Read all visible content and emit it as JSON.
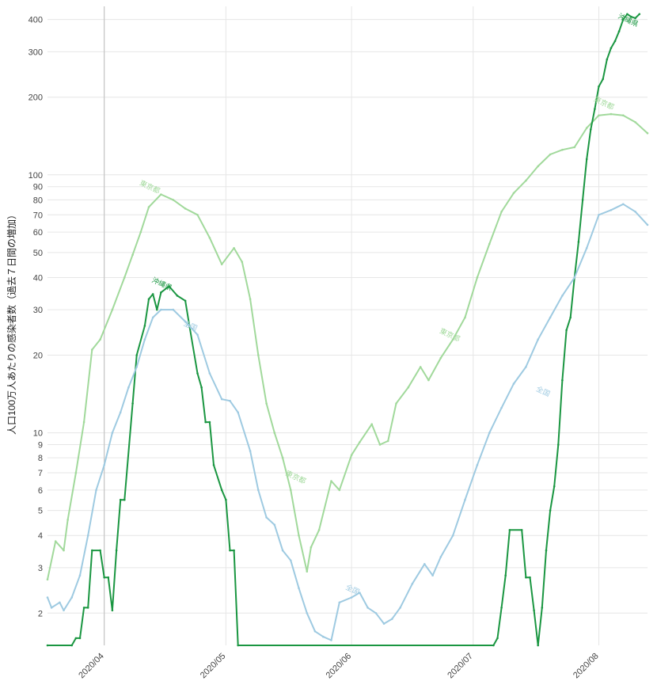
{
  "chart_data": {
    "type": "line",
    "ylabel": "人口100万人あたりの感染者数（過去７日間の増加）",
    "yscale": "log",
    "ylim": [
      1.5,
      450
    ],
    "xlim": [
      "2020-03-18",
      "2020-08-13"
    ],
    "grid": true,
    "y_ticks": [
      2,
      3,
      4,
      5,
      6,
      7,
      8,
      9,
      10,
      20,
      30,
      40,
      50,
      60,
      70,
      80,
      90,
      100,
      200,
      300,
      400
    ],
    "x_ticks": [
      {
        "date": "2020-04-01",
        "label": "2020/04"
      },
      {
        "date": "2020-05-01",
        "label": "2020/05"
      },
      {
        "date": "2020-06-01",
        "label": "2020/06"
      },
      {
        "date": "2020-07-01",
        "label": "2020/07"
      },
      {
        "date": "2020-08-01",
        "label": "2020/08"
      }
    ],
    "reference_line": "2020-04-01",
    "series": [
      {
        "name": "東京都",
        "color": "#a1d99b",
        "labels": [
          {
            "date": "2020-04-12",
            "y": 88,
            "angle": 25
          },
          {
            "date": "2020-05-18",
            "y": 6.6,
            "angle": 25
          },
          {
            "date": "2020-06-25",
            "y": 23.5,
            "angle": 25
          },
          {
            "date": "2020-08-02",
            "y": 186,
            "angle": 25
          }
        ],
        "points": [
          [
            "2020-03-18",
            2.7
          ],
          [
            "2020-03-20",
            3.8
          ],
          [
            "2020-03-22",
            3.5
          ],
          [
            "2020-03-23",
            4.6
          ],
          [
            "2020-03-25",
            7.0
          ],
          [
            "2020-03-27",
            11.0
          ],
          [
            "2020-03-29",
            21.0
          ],
          [
            "2020-03-31",
            23.0
          ],
          [
            "2020-04-03",
            30.0
          ],
          [
            "2020-04-06",
            40.0
          ],
          [
            "2020-04-08",
            49.0
          ],
          [
            "2020-04-10",
            60.0
          ],
          [
            "2020-04-12",
            75.0
          ],
          [
            "2020-04-15",
            84.0
          ],
          [
            "2020-04-18",
            80.0
          ],
          [
            "2020-04-21",
            74.0
          ],
          [
            "2020-04-24",
            70.0
          ],
          [
            "2020-04-27",
            57.0
          ],
          [
            "2020-04-30",
            45.0
          ],
          [
            "2020-05-03",
            52.0
          ],
          [
            "2020-05-05",
            46.0
          ],
          [
            "2020-05-07",
            33.0
          ],
          [
            "2020-05-09",
            20.0
          ],
          [
            "2020-05-11",
            13.0
          ],
          [
            "2020-05-13",
            10.0
          ],
          [
            "2020-05-15",
            8.0
          ],
          [
            "2020-05-17",
            6.0
          ],
          [
            "2020-05-19",
            4.0
          ],
          [
            "2020-05-21",
            2.9
          ],
          [
            "2020-05-22",
            3.6
          ],
          [
            "2020-05-24",
            4.2
          ],
          [
            "2020-05-27",
            6.5
          ],
          [
            "2020-05-29",
            6.0
          ],
          [
            "2020-06-01",
            8.2
          ],
          [
            "2020-06-03",
            9.2
          ],
          [
            "2020-06-06",
            10.8
          ],
          [
            "2020-06-08",
            9.0
          ],
          [
            "2020-06-10",
            9.3
          ],
          [
            "2020-06-12",
            13.0
          ],
          [
            "2020-06-15",
            15.0
          ],
          [
            "2020-06-18",
            18.0
          ],
          [
            "2020-06-20",
            16.0
          ],
          [
            "2020-06-23",
            19.5
          ],
          [
            "2020-06-26",
            23.0
          ],
          [
            "2020-06-29",
            28.0
          ],
          [
            "2020-07-02",
            40.0
          ],
          [
            "2020-07-05",
            54.0
          ],
          [
            "2020-07-08",
            72.0
          ],
          [
            "2020-07-11",
            85.0
          ],
          [
            "2020-07-14",
            95.0
          ],
          [
            "2020-07-17",
            108.0
          ],
          [
            "2020-07-20",
            120.0
          ],
          [
            "2020-07-23",
            125.0
          ],
          [
            "2020-07-26",
            128.0
          ],
          [
            "2020-07-29",
            152.0
          ],
          [
            "2020-08-01",
            170.0
          ],
          [
            "2020-08-04",
            172.0
          ],
          [
            "2020-08-07",
            170.0
          ],
          [
            "2020-08-10",
            160.0
          ],
          [
            "2020-08-13",
            145.0
          ]
        ]
      },
      {
        "name": "沖縄県",
        "color": "#1a9641",
        "labels": [
          {
            "date": "2020-04-15",
            "y": 37,
            "angle": 25
          },
          {
            "date": "2020-08-08",
            "y": 390,
            "angle": 25
          }
        ],
        "points": [
          [
            "2020-03-18",
            1.5
          ],
          [
            "2020-03-24",
            1.5
          ],
          [
            "2020-03-25",
            1.6
          ],
          [
            "2020-03-26",
            1.6
          ],
          [
            "2020-03-27",
            2.1
          ],
          [
            "2020-03-28",
            2.1
          ],
          [
            "2020-03-29",
            3.5
          ],
          [
            "2020-03-31",
            3.5
          ],
          [
            "2020-04-01",
            2.75
          ],
          [
            "2020-04-02",
            2.75
          ],
          [
            "2020-04-03",
            2.05
          ],
          [
            "2020-04-04",
            3.5
          ],
          [
            "2020-04-05",
            5.5
          ],
          [
            "2020-04-06",
            5.5
          ],
          [
            "2020-04-08",
            13.0
          ],
          [
            "2020-04-09",
            20.0
          ],
          [
            "2020-04-11",
            26.0
          ],
          [
            "2020-04-12",
            33.0
          ],
          [
            "2020-04-13",
            34.5
          ],
          [
            "2020-04-14",
            30.0
          ],
          [
            "2020-04-15",
            35.0
          ],
          [
            "2020-04-17",
            37.0
          ],
          [
            "2020-04-19",
            34.0
          ],
          [
            "2020-04-21",
            32.5
          ],
          [
            "2020-04-22",
            26.0
          ],
          [
            "2020-04-24",
            17.0
          ],
          [
            "2020-04-25",
            15.0
          ],
          [
            "2020-04-26",
            11.0
          ],
          [
            "2020-04-27",
            11.0
          ],
          [
            "2020-04-28",
            7.5
          ],
          [
            "2020-04-30",
            6.0
          ],
          [
            "2020-05-01",
            5.5
          ],
          [
            "2020-05-02",
            3.5
          ],
          [
            "2020-05-03",
            3.5
          ],
          [
            "2020-05-04",
            1.5
          ],
          [
            "2020-07-06",
            1.5
          ],
          [
            "2020-07-07",
            1.6
          ],
          [
            "2020-07-08",
            2.1
          ],
          [
            "2020-07-09",
            2.8
          ],
          [
            "2020-07-10",
            4.2
          ],
          [
            "2020-07-13",
            4.2
          ],
          [
            "2020-07-14",
            2.75
          ],
          [
            "2020-07-15",
            2.75
          ],
          [
            "2020-07-16",
            2.05
          ],
          [
            "2020-07-17",
            1.5
          ],
          [
            "2020-07-18",
            2.1
          ],
          [
            "2020-07-19",
            3.5
          ],
          [
            "2020-07-20",
            5.0
          ],
          [
            "2020-07-21",
            6.2
          ],
          [
            "2020-07-22",
            9.0
          ],
          [
            "2020-07-23",
            16.0
          ],
          [
            "2020-07-24",
            25.0
          ],
          [
            "2020-07-25",
            28.0
          ],
          [
            "2020-07-26",
            40.0
          ],
          [
            "2020-07-27",
            55.0
          ],
          [
            "2020-07-28",
            80.0
          ],
          [
            "2020-07-29",
            115.0
          ],
          [
            "2020-07-30",
            150.0
          ],
          [
            "2020-07-31",
            180.0
          ],
          [
            "2020-08-01",
            220.0
          ],
          [
            "2020-08-02",
            235.0
          ],
          [
            "2020-08-03",
            280.0
          ],
          [
            "2020-08-04",
            310.0
          ],
          [
            "2020-08-05",
            330.0
          ],
          [
            "2020-08-06",
            360.0
          ],
          [
            "2020-08-07",
            400.0
          ],
          [
            "2020-08-08",
            420.0
          ],
          [
            "2020-08-09",
            410.0
          ],
          [
            "2020-08-10",
            405.0
          ],
          [
            "2020-08-11",
            420.0
          ]
        ]
      },
      {
        "name": "全国",
        "color": "#9ecae1",
        "labels": [
          {
            "date": "2020-04-22",
            "y": 25.5,
            "angle": 25
          },
          {
            "date": "2020-06-01",
            "y": 2.42,
            "angle": 25
          },
          {
            "date": "2020-07-18",
            "y": 14.2,
            "angle": 25
          }
        ],
        "points": [
          [
            "2020-03-18",
            2.3
          ],
          [
            "2020-03-19",
            2.1
          ],
          [
            "2020-03-21",
            2.2
          ],
          [
            "2020-03-22",
            2.05
          ],
          [
            "2020-03-24",
            2.3
          ],
          [
            "2020-03-26",
            2.8
          ],
          [
            "2020-03-28",
            4.0
          ],
          [
            "2020-03-30",
            6.0
          ],
          [
            "2020-04-01",
            7.5
          ],
          [
            "2020-04-03",
            10.0
          ],
          [
            "2020-04-05",
            12.0
          ],
          [
            "2020-04-07",
            15.0
          ],
          [
            "2020-04-09",
            18.0
          ],
          [
            "2020-04-11",
            23.0
          ],
          [
            "2020-04-13",
            28.0
          ],
          [
            "2020-04-15",
            30.0
          ],
          [
            "2020-04-18",
            30.0
          ],
          [
            "2020-04-21",
            27.0
          ],
          [
            "2020-04-24",
            24.0
          ],
          [
            "2020-04-27",
            17.0
          ],
          [
            "2020-04-30",
            13.5
          ],
          [
            "2020-05-02",
            13.3
          ],
          [
            "2020-05-04",
            12.0
          ],
          [
            "2020-05-07",
            8.5
          ],
          [
            "2020-05-09",
            6.0
          ],
          [
            "2020-05-11",
            4.7
          ],
          [
            "2020-05-13",
            4.4
          ],
          [
            "2020-05-15",
            3.5
          ],
          [
            "2020-05-17",
            3.2
          ],
          [
            "2020-05-19",
            2.5
          ],
          [
            "2020-05-21",
            2.0
          ],
          [
            "2020-05-23",
            1.7
          ],
          [
            "2020-05-25",
            1.62
          ],
          [
            "2020-05-27",
            1.57
          ],
          [
            "2020-05-29",
            2.2
          ],
          [
            "2020-06-01",
            2.3
          ],
          [
            "2020-06-03",
            2.4
          ],
          [
            "2020-06-05",
            2.1
          ],
          [
            "2020-06-07",
            2.0
          ],
          [
            "2020-06-09",
            1.82
          ],
          [
            "2020-06-11",
            1.9
          ],
          [
            "2020-06-13",
            2.1
          ],
          [
            "2020-06-16",
            2.6
          ],
          [
            "2020-06-19",
            3.1
          ],
          [
            "2020-06-21",
            2.8
          ],
          [
            "2020-06-23",
            3.3
          ],
          [
            "2020-06-26",
            4.0
          ],
          [
            "2020-06-29",
            5.5
          ],
          [
            "2020-07-02",
            7.5
          ],
          [
            "2020-07-05",
            10.0
          ],
          [
            "2020-07-08",
            12.5
          ],
          [
            "2020-07-11",
            15.5
          ],
          [
            "2020-07-14",
            18.0
          ],
          [
            "2020-07-17",
            23.0
          ],
          [
            "2020-07-20",
            28.0
          ],
          [
            "2020-07-23",
            34.0
          ],
          [
            "2020-07-26",
            40.0
          ],
          [
            "2020-07-29",
            52.0
          ],
          [
            "2020-08-01",
            70.0
          ],
          [
            "2020-08-04",
            73.0
          ],
          [
            "2020-08-07",
            77.0
          ],
          [
            "2020-08-10",
            72.0
          ],
          [
            "2020-08-13",
            64.0
          ]
        ]
      }
    ]
  }
}
